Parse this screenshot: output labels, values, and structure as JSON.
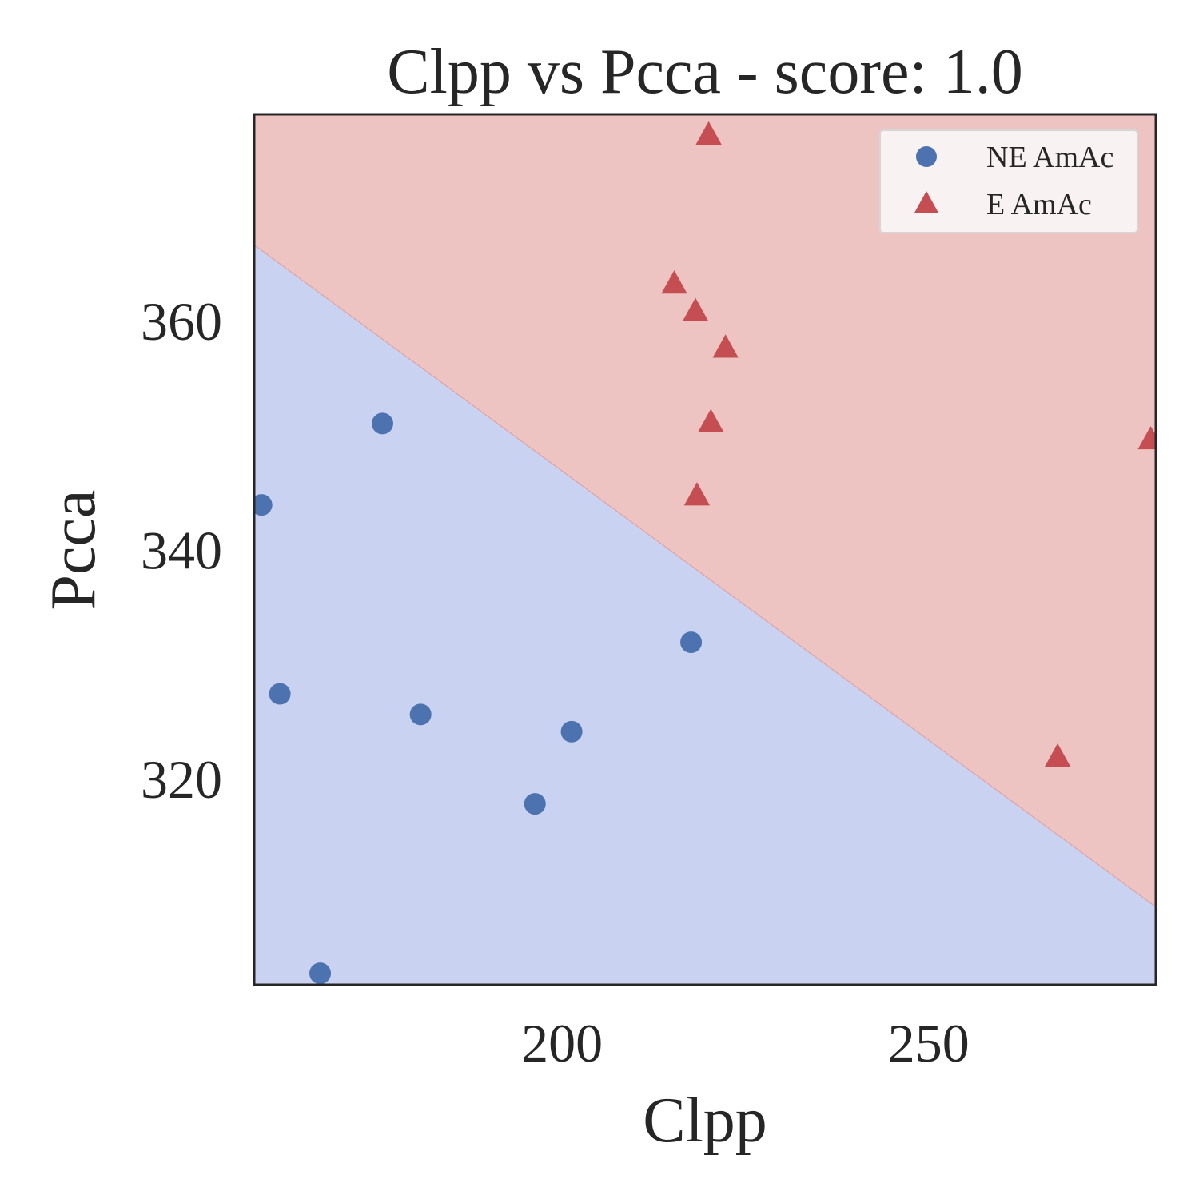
{
  "chart_data": {
    "type": "scatter",
    "title": "Clpp vs Pcca - score: 1.0",
    "xlabel": "Clpp",
    "ylabel": "Pcca",
    "xlim": [
      158,
      281
    ],
    "ylim": [
      302,
      378
    ],
    "xticks": [
      200,
      250
    ],
    "yticks": [
      320,
      340,
      360
    ],
    "grid": false,
    "legend_position": "upper right",
    "background_regions": {
      "boundary_line": {
        "points": [
          [
            158,
            366.6
          ],
          [
            281,
            308.8
          ]
        ]
      },
      "above": {
        "class": "E AmAc",
        "color": "#eec4c3"
      },
      "below": {
        "class": "NE AmAc",
        "color": "#c9d2f1"
      }
    },
    "series": [
      {
        "name": "NE AmAc",
        "marker": "circle",
        "color": "#4c72b0",
        "points": [
          [
            159,
            343.9
          ],
          [
            161.5,
            327.4
          ],
          [
            167,
            303.0
          ],
          [
            175.5,
            351.0
          ],
          [
            180.7,
            325.6
          ],
          [
            196.3,
            317.8
          ],
          [
            201.3,
            324.1
          ],
          [
            217.6,
            331.9
          ]
        ]
      },
      {
        "name": "E AmAc",
        "marker": "triangle",
        "color": "#c44e52",
        "points": [
          [
            220,
            376.2
          ],
          [
            215.3,
            363.2
          ],
          [
            218.2,
            360.8
          ],
          [
            222.3,
            357.6
          ],
          [
            220.3,
            351.1
          ],
          [
            218.4,
            344.7
          ],
          [
            267.6,
            321.9
          ],
          [
            280.3,
            349.6
          ]
        ]
      }
    ]
  }
}
